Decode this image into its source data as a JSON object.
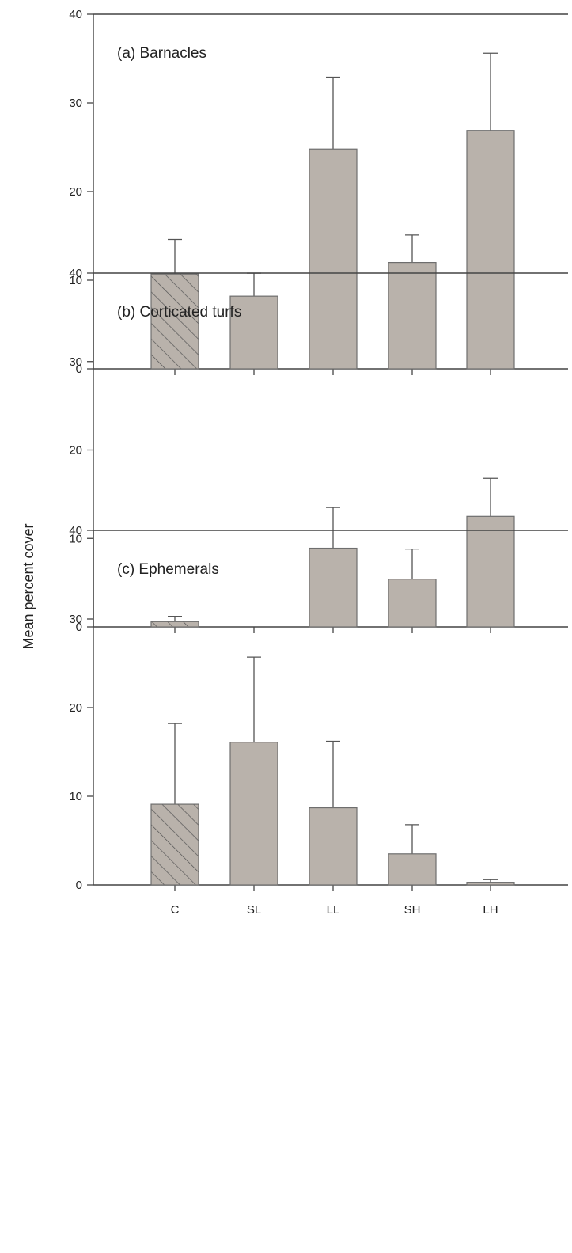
{
  "colors": {
    "bar_fill": "#b9b2ab",
    "bar_stroke": "#6e6e6e",
    "hatch_line": "#555555",
    "axis": "#444444"
  },
  "chart_data": {
    "type": "bar",
    "ylabel": "Mean percent cover",
    "categories": [
      "C",
      "SL",
      "LL",
      "SH",
      "LH"
    ],
    "hatched_category": "C",
    "ylim": [
      0,
      40
    ],
    "yticks": [
      0,
      10,
      20,
      30,
      40
    ],
    "grid": false,
    "panels": [
      {
        "label": "(a) Barnacles",
        "values": [
          10.7,
          8.2,
          24.8,
          12.0,
          26.9
        ],
        "errors": [
          3.9,
          2.6,
          8.1,
          3.1,
          8.7
        ]
      },
      {
        "label": "(b) Corticated turfs",
        "values": [
          0.6,
          0.0,
          8.9,
          5.4,
          12.5
        ],
        "errors": [
          0.6,
          0.0,
          4.6,
          3.4,
          4.3
        ]
      },
      {
        "label": "(c) Ephemerals",
        "values": [
          9.1,
          16.1,
          8.7,
          3.5,
          0.3
        ],
        "errors": [
          9.1,
          9.6,
          7.5,
          3.3,
          0.3
        ]
      }
    ]
  }
}
